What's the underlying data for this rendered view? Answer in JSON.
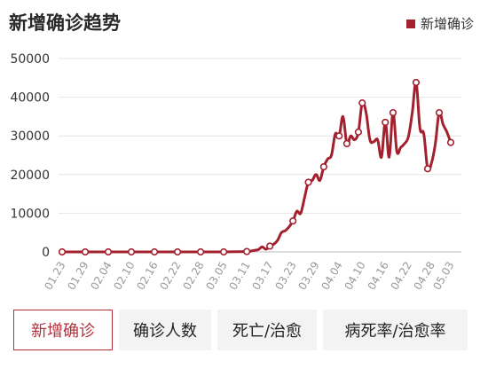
{
  "title": "新增确诊趋势",
  "legend_label": "新增确诊",
  "accent_color": "#a3202e",
  "tabs": [
    {
      "label": "新增确诊",
      "active": true
    },
    {
      "label": "确诊人数",
      "active": false
    },
    {
      "label": "死亡/治愈",
      "active": false
    },
    {
      "label": "病死率/治愈率",
      "active": false
    }
  ],
  "chart_data": {
    "type": "line",
    "title": "新增确诊趋势",
    "xlabel": "",
    "ylabel": "",
    "ylim": [
      0,
      50000
    ],
    "yticks": [
      0,
      10000,
      20000,
      30000,
      40000,
      50000
    ],
    "xtick_labels": [
      "01.23",
      "01.29",
      "02.04",
      "02.10",
      "02.16",
      "02.22",
      "02.28",
      "03.05",
      "03.11",
      "03.17",
      "03.23",
      "03.29",
      "04.04",
      "04.10",
      "04.16",
      "04.22",
      "04.28",
      "05.03"
    ],
    "grid": "horizontal",
    "legend": "top-right",
    "series": [
      {
        "name": "新增确诊",
        "x": [
          0,
          6,
          12,
          18,
          24,
          30,
          36,
          42,
          48,
          49,
          50,
          51,
          52,
          53,
          54,
          55,
          56,
          57,
          58,
          59,
          60,
          61,
          62,
          63,
          64,
          65,
          66,
          67,
          68,
          69,
          70,
          71,
          72,
          73,
          74,
          75,
          76,
          77,
          78,
          79,
          80,
          81,
          82,
          83,
          84,
          85,
          86,
          87,
          88,
          89,
          90,
          91,
          92,
          93,
          94,
          95,
          96,
          97,
          98,
          99,
          100,
          101
        ],
        "y": [
          0,
          0,
          0,
          0,
          0,
          0,
          0,
          0,
          100,
          200,
          400,
          600,
          1300,
          700,
          1500,
          2000,
          3000,
          5000,
          5500,
          6500,
          8000,
          10500,
          10000,
          14000,
          18000,
          18500,
          20000,
          18500,
          22000,
          24000,
          25000,
          30500,
          30000,
          35000,
          28000,
          30000,
          29000,
          31000,
          38500,
          36000,
          29000,
          28500,
          29000,
          24500,
          33500,
          24500,
          36000,
          26000,
          27000,
          28000,
          29800,
          36000,
          43800,
          32000,
          30500,
          21500,
          23000,
          28000,
          36000,
          33000,
          31000,
          28300
        ]
      }
    ],
    "markers_at_x": [
      0,
      6,
      12,
      18,
      24,
      30,
      36,
      42,
      48,
      54,
      60,
      64,
      68,
      72,
      74,
      77,
      78,
      84,
      86,
      92,
      95,
      98,
      101
    ]
  }
}
